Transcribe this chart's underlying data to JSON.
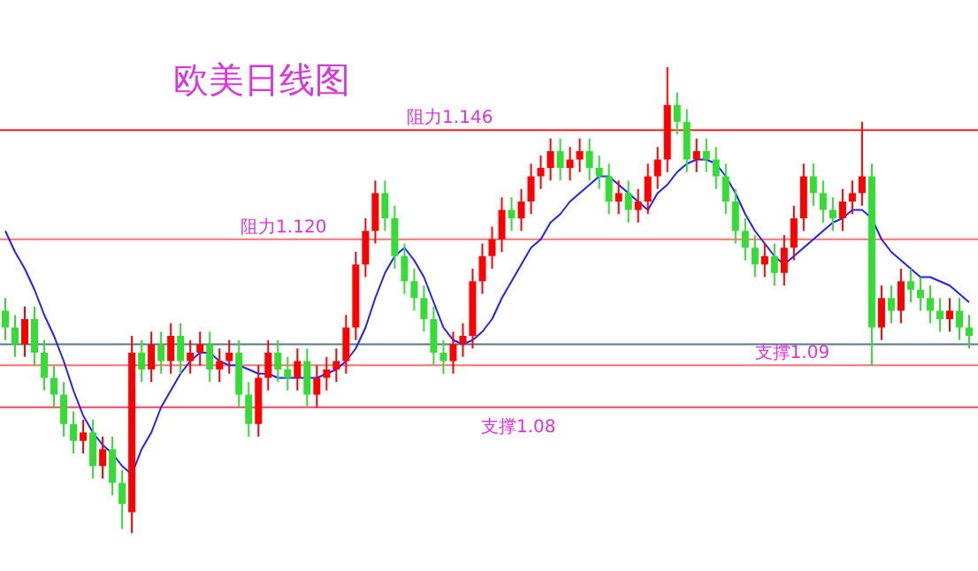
{
  "chart_data": {
    "type": "candlestick",
    "title": "欧美日线图",
    "ylim": [
      1.041,
      1.177
    ],
    "categories": [
      null,
      null,
      null,
      null,
      null,
      null,
      null,
      null,
      null,
      null,
      null,
      null,
      null,
      null,
      null,
      null,
      null,
      null,
      null,
      null,
      null,
      null,
      null,
      null,
      null,
      null,
      null,
      null,
      null,
      null,
      null,
      null,
      null,
      null,
      null,
      null,
      null,
      null,
      null,
      null,
      null,
      null,
      null,
      null,
      null,
      null,
      null,
      null,
      null,
      null,
      null,
      null,
      null,
      null,
      null,
      null,
      null,
      null,
      null,
      null,
      null,
      null,
      null,
      null,
      null,
      null,
      null,
      null,
      null,
      null,
      null,
      null,
      null,
      null,
      null,
      null,
      null,
      null,
      null,
      null,
      null,
      null,
      null,
      null,
      null,
      null,
      null,
      null,
      null,
      null,
      null,
      null,
      null,
      null,
      null,
      null,
      null,
      null,
      null,
      null
    ],
    "ohlc": [
      [
        1.103,
        1.106,
        1.096,
        1.099
      ],
      [
        1.099,
        1.102,
        1.092,
        1.095
      ],
      [
        1.095,
        1.104,
        1.092,
        1.101
      ],
      [
        1.101,
        1.104,
        1.09,
        1.093
      ],
      [
        1.093,
        1.096,
        1.084,
        1.087
      ],
      [
        1.087,
        1.09,
        1.08,
        1.083
      ],
      [
        1.083,
        1.086,
        1.073,
        1.076
      ],
      [
        1.076,
        1.079,
        1.069,
        1.072
      ],
      [
        1.072,
        1.077,
        1.069,
        1.074
      ],
      [
        1.074,
        1.077,
        1.063,
        1.066
      ],
      [
        1.066,
        1.073,
        1.063,
        1.07
      ],
      [
        1.07,
        1.073,
        1.059,
        1.062
      ],
      [
        1.062,
        1.065,
        1.051,
        1.057
      ],
      [
        1.055,
        1.097,
        1.05,
        1.093
      ],
      [
        1.093,
        1.096,
        1.086,
        1.089
      ],
      [
        1.089,
        1.098,
        1.086,
        1.095
      ],
      [
        1.095,
        1.098,
        1.088,
        1.091
      ],
      [
        1.091,
        1.1,
        1.088,
        1.097
      ],
      [
        1.097,
        1.1,
        1.088,
        1.091
      ],
      [
        1.091,
        1.096,
        1.088,
        1.093
      ],
      [
        1.093,
        1.098,
        1.09,
        1.095
      ],
      [
        1.095,
        1.098,
        1.086,
        1.089
      ],
      [
        1.089,
        1.094,
        1.086,
        1.091
      ],
      [
        1.091,
        1.096,
        1.088,
        1.093
      ],
      [
        1.093,
        1.096,
        1.08,
        1.083
      ],
      [
        1.083,
        1.086,
        1.073,
        1.076
      ],
      [
        1.076,
        1.09,
        1.073,
        1.087
      ],
      [
        1.087,
        1.096,
        1.084,
        1.093
      ],
      [
        1.093,
        1.096,
        1.086,
        1.089
      ],
      [
        1.089,
        1.092,
        1.084,
        1.087
      ],
      [
        1.087,
        1.094,
        1.084,
        1.091
      ],
      [
        1.091,
        1.094,
        1.08,
        1.083
      ],
      [
        1.083,
        1.09,
        1.08,
        1.087
      ],
      [
        1.087,
        1.092,
        1.084,
        1.089
      ],
      [
        1.089,
        1.094,
        1.086,
        1.091
      ],
      [
        1.091,
        1.102,
        1.088,
        1.099
      ],
      [
        1.099,
        1.117,
        1.096,
        1.114
      ],
      [
        1.114,
        1.125,
        1.111,
        1.122
      ],
      [
        1.122,
        1.134,
        1.119,
        1.131
      ],
      [
        1.131,
        1.134,
        1.122,
        1.125
      ],
      [
        1.125,
        1.128,
        1.113,
        1.116
      ],
      [
        1.116,
        1.119,
        1.107,
        1.11
      ],
      [
        1.11,
        1.113,
        1.103,
        1.106
      ],
      [
        1.106,
        1.109,
        1.098,
        1.101
      ],
      [
        1.101,
        1.104,
        1.09,
        1.093
      ],
      [
        1.093,
        1.096,
        1.088,
        1.091
      ],
      [
        1.091,
        1.098,
        1.088,
        1.095
      ],
      [
        1.095,
        1.1,
        1.092,
        1.097
      ],
      [
        1.097,
        1.113,
        1.094,
        1.11
      ],
      [
        1.11,
        1.119,
        1.107,
        1.116
      ],
      [
        1.116,
        1.123,
        1.113,
        1.12
      ],
      [
        1.12,
        1.13,
        1.117,
        1.127
      ],
      [
        1.127,
        1.13,
        1.122,
        1.125
      ],
      [
        1.125,
        1.132,
        1.122,
        1.129
      ],
      [
        1.129,
        1.138,
        1.126,
        1.135
      ],
      [
        1.135,
        1.14,
        1.132,
        1.137
      ],
      [
        1.137,
        1.144,
        1.134,
        1.141
      ],
      [
        1.141,
        1.144,
        1.134,
        1.137
      ],
      [
        1.137,
        1.142,
        1.134,
        1.139
      ],
      [
        1.139,
        1.144,
        1.136,
        1.141
      ],
      [
        1.141,
        1.144,
        1.134,
        1.137
      ],
      [
        1.137,
        1.14,
        1.132,
        1.135
      ],
      [
        1.135,
        1.138,
        1.126,
        1.129
      ],
      [
        1.129,
        1.134,
        1.126,
        1.131
      ],
      [
        1.131,
        1.134,
        1.124,
        1.127
      ],
      [
        1.127,
        1.132,
        1.124,
        1.129
      ],
      [
        1.129,
        1.138,
        1.126,
        1.135
      ],
      [
        1.135,
        1.142,
        1.132,
        1.139
      ],
      [
        1.139,
        1.161,
        1.136,
        1.152
      ],
      [
        1.152,
        1.155,
        1.145,
        1.148
      ],
      [
        1.148,
        1.151,
        1.136,
        1.139
      ],
      [
        1.139,
        1.144,
        1.136,
        1.141
      ],
      [
        1.141,
        1.144,
        1.136,
        1.139
      ],
      [
        1.139,
        1.142,
        1.132,
        1.135
      ],
      [
        1.135,
        1.138,
        1.126,
        1.129
      ],
      [
        1.129,
        1.132,
        1.119,
        1.122
      ],
      [
        1.122,
        1.125,
        1.115,
        1.118
      ],
      [
        1.118,
        1.121,
        1.111,
        1.114
      ],
      [
        1.114,
        1.119,
        1.111,
        1.116
      ],
      [
        1.116,
        1.119,
        1.109,
        1.112
      ],
      [
        1.112,
        1.121,
        1.109,
        1.118
      ],
      [
        1.118,
        1.128,
        1.115,
        1.125
      ],
      [
        1.125,
        1.138,
        1.122,
        1.135
      ],
      [
        1.135,
        1.138,
        1.128,
        1.131
      ],
      [
        1.131,
        1.134,
        1.124,
        1.127
      ],
      [
        1.127,
        1.13,
        1.122,
        1.125
      ],
      [
        1.125,
        1.132,
        1.122,
        1.129
      ],
      [
        1.129,
        1.134,
        1.126,
        1.131
      ],
      [
        1.131,
        1.148,
        1.128,
        1.135
      ],
      [
        1.135,
        1.138,
        1.09,
        1.099
      ],
      [
        1.099,
        1.109,
        1.096,
        1.106
      ],
      [
        1.106,
        1.109,
        1.1,
        1.103
      ],
      [
        1.103,
        1.113,
        1.1,
        1.11
      ],
      [
        1.11,
        1.113,
        1.105,
        1.108
      ],
      [
        1.108,
        1.111,
        1.103,
        1.106
      ],
      [
        1.106,
        1.109,
        1.1,
        1.103
      ],
      [
        1.103,
        1.106,
        1.098,
        1.101
      ],
      [
        1.101,
        1.106,
        1.098,
        1.103
      ],
      [
        1.103,
        1.106,
        1.096,
        1.099
      ],
      [
        1.099,
        1.102,
        1.094,
        1.097
      ]
    ],
    "series": [
      {
        "type": "line",
        "color": "#2020ff",
        "values": [
          1.122,
          1.117,
          1.113,
          1.108,
          1.102,
          1.097,
          1.091,
          1.084,
          1.078,
          1.074,
          1.071,
          1.069,
          1.066,
          1.064,
          1.07,
          1.074,
          1.08,
          1.084,
          1.088,
          1.091,
          1.093,
          1.093,
          1.091,
          1.09,
          1.09,
          1.089,
          1.088,
          1.088,
          1.087,
          1.087,
          1.087,
          1.087,
          1.087,
          1.088,
          1.089,
          1.091,
          1.094,
          1.099,
          1.106,
          1.112,
          1.116,
          1.118,
          1.115,
          1.111,
          1.105,
          1.099,
          1.096,
          1.095,
          1.096,
          1.098,
          1.101,
          1.106,
          1.11,
          1.114,
          1.118,
          1.12,
          1.124,
          1.126,
          1.129,
          1.131,
          1.133,
          1.135,
          1.135,
          1.133,
          1.131,
          1.129,
          1.127,
          1.131,
          1.133,
          1.136,
          1.138,
          1.139,
          1.139,
          1.138,
          1.135,
          1.131,
          1.126,
          1.122,
          1.119,
          1.116,
          1.114,
          1.116,
          1.118,
          1.12,
          1.122,
          1.124,
          1.125,
          1.127,
          1.127,
          1.125,
          1.12,
          1.117,
          1.115,
          1.113,
          1.111,
          1.111,
          1.11,
          1.109,
          1.107,
          1.105
        ]
      }
    ],
    "ref_lines": [
      {
        "axis": "y",
        "value": 1.146,
        "label": "阻力1.146",
        "color": "#ff2020"
      },
      {
        "axis": "y",
        "value": 1.12,
        "label": "阻力1.120",
        "color": "#ff7070"
      },
      {
        "axis": "y",
        "value": 1.095,
        "color": "#557788"
      },
      {
        "axis": "y",
        "value": 1.09,
        "label": "支撑1.09",
        "color": "#ff7070"
      },
      {
        "axis": "y",
        "value": 1.08,
        "label": "支撑1.08",
        "color": "#ff4060"
      }
    ]
  }
}
